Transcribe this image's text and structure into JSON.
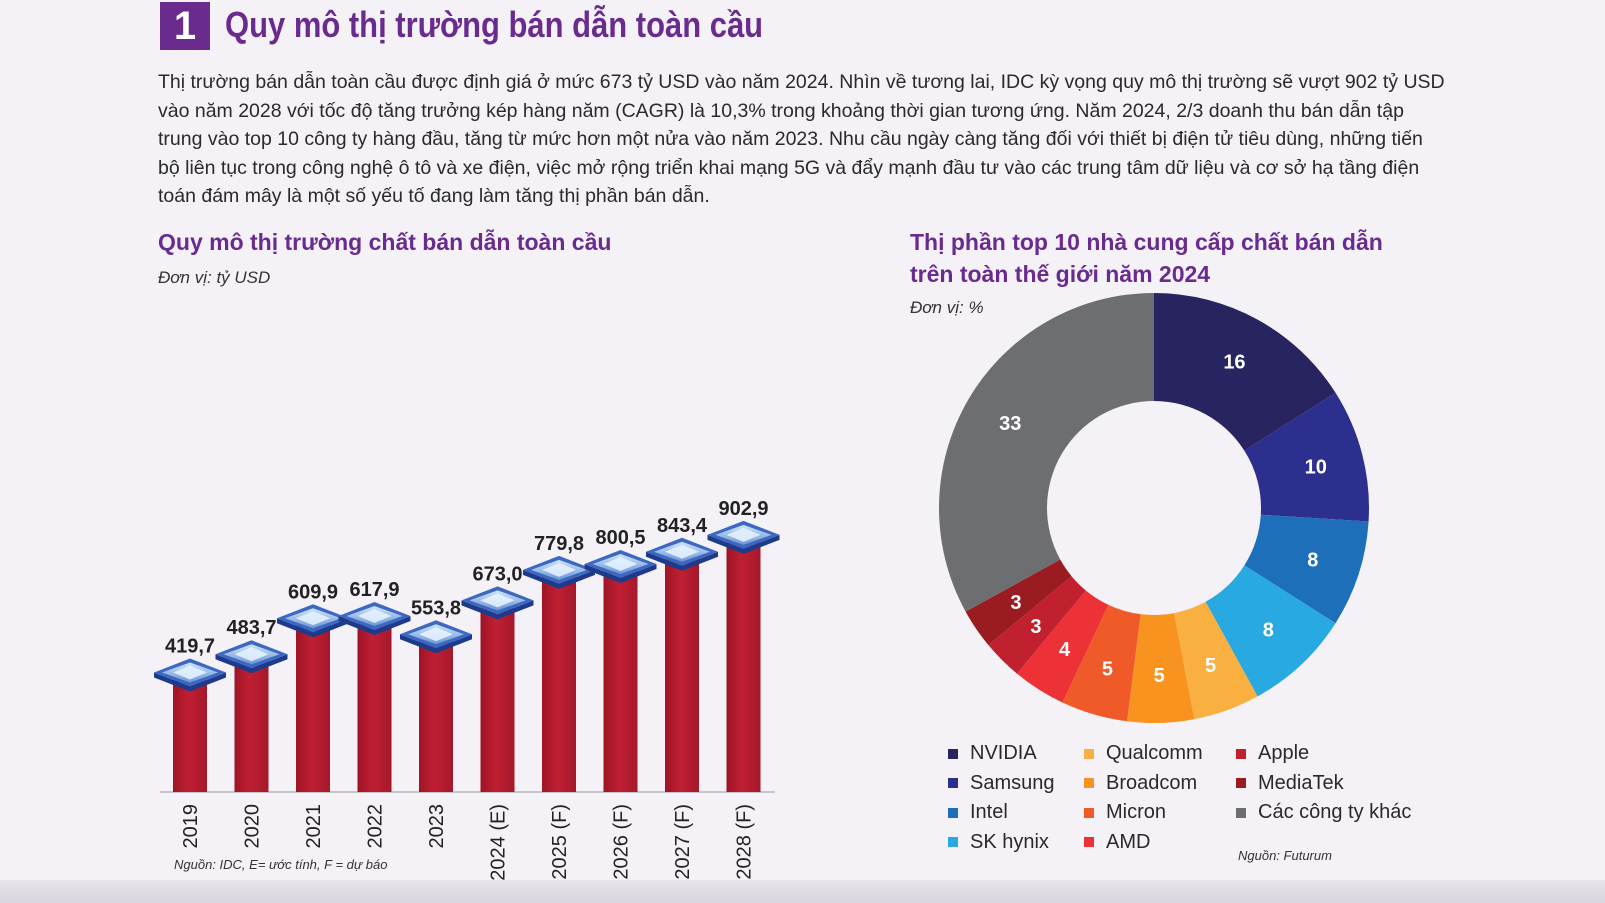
{
  "section": {
    "number": "1",
    "title": "Quy mô thị trường bán dẫn toàn cầu",
    "accent_color": "#6a2b8f"
  },
  "intro": "Thị trường bán dẫn toàn cầu được định giá ở mức 673 tỷ USD vào năm 2024. Nhìn về tương lai, IDC kỳ vọng quy mô thị trường sẽ vượt 902 tỷ USD vào năm 2028 với tốc độ tăng trưởng kép hàng năm (CAGR) là 10,3% trong khoảng thời gian tương ứng. Năm 2024, 2/3 doanh thu bán dẫn tập trung vào top 10 công ty hàng đầu, tăng từ mức hơn một nửa vào năm 2023. Nhu cầu ngày càng tăng đối với thiết bị điện tử tiêu dùng, những tiến bộ liên tục trong công nghệ ô tô và xe điện, việc mở rộng triển khai mạng 5G và đẩy mạnh đầu tư vào các trung tâm dữ liệu và cơ sở hạ tầng điện toán đám mây là một số yếu tố đang làm tăng thị phần bán dẫn.",
  "chart_data": [
    {
      "type": "bar",
      "title": "Quy mô thị trường chất bán dẫn toàn cầu",
      "unit": "Đơn vị: tỷ USD",
      "categories": [
        "2019",
        "2020",
        "2021",
        "2022",
        "2023",
        "2024 (E)",
        "2025 (F)",
        "2026 (F)",
        "2027 (F)",
        "2028 (F)"
      ],
      "values": [
        419.7,
        483.7,
        609.9,
        617.9,
        553.8,
        673.0,
        779.8,
        800.5,
        843.4,
        902.9
      ],
      "value_labels": [
        "419,7",
        "483,7",
        "609,9",
        "617,9",
        "553,8",
        "673,0",
        "779,8",
        "800,5",
        "843,4",
        "902,9"
      ],
      "bar_color": "#c01f33",
      "source": "Nguồn: IDC, E= ước tính, F = dự báo"
    },
    {
      "type": "pie",
      "title_lines": [
        "Thị phần top 10 nhà cung cấp chất bán dẫn",
        "trên toàn thế giới năm 2024"
      ],
      "unit": "Đơn vị: %",
      "donut": true,
      "slices": [
        {
          "name": "NVIDIA",
          "value": 16,
          "color": "#272460"
        },
        {
          "name": "Samsung",
          "value": 10,
          "color": "#2d2f8e"
        },
        {
          "name": "Intel",
          "value": 8,
          "color": "#1d6fba"
        },
        {
          "name": "SK hynix",
          "value": 8,
          "color": "#28a9e1"
        },
        {
          "name": "Qualcomm",
          "value": 5,
          "color": "#f9b040"
        },
        {
          "name": "Broadcom",
          "value": 5,
          "color": "#f7931e"
        },
        {
          "name": "Micron",
          "value": 5,
          "color": "#f05a28"
        },
        {
          "name": "AMD",
          "value": 4,
          "color": "#ec3237"
        },
        {
          "name": "Apple",
          "value": 3,
          "color": "#c1202f"
        },
        {
          "name": "MediaTek",
          "value": 3,
          "color": "#9a1b20"
        },
        {
          "name": "Các công ty khác",
          "value": 33,
          "color": "#6d6e71"
        }
      ],
      "legend_order": [
        "NVIDIA",
        "Samsung",
        "Intel",
        "SK hynix",
        "Qualcomm",
        "Broadcom",
        "Micron",
        "AMD",
        "Apple",
        "MediaTek",
        "Các công ty khác"
      ],
      "source": "Nguồn: Futurum"
    }
  ]
}
